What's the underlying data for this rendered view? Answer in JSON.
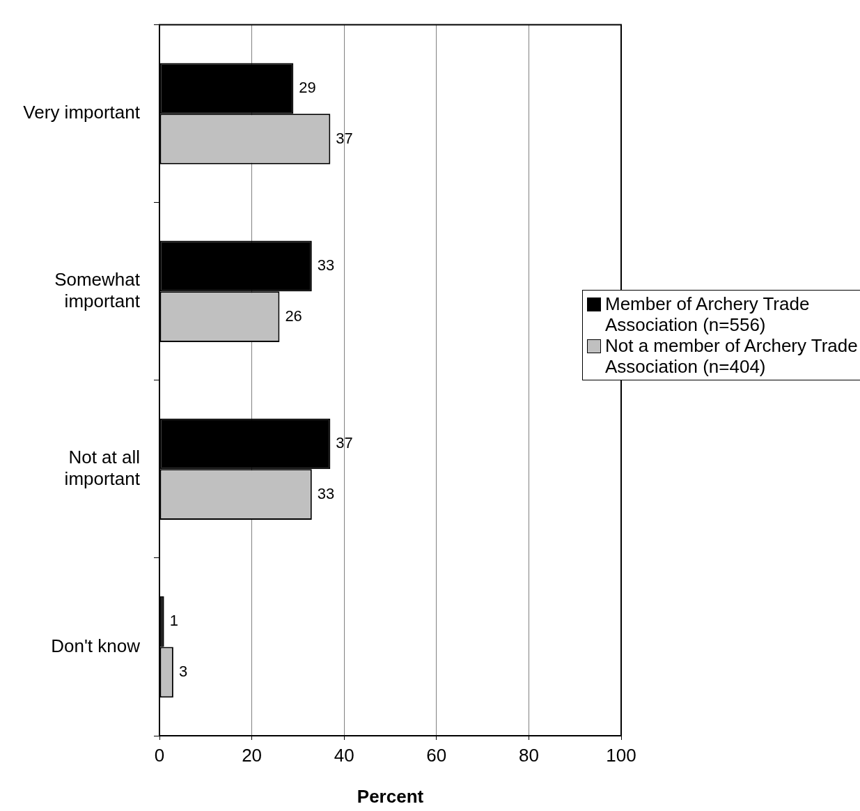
{
  "chart_data": {
    "type": "bar",
    "orientation": "horizontal",
    "xlabel": "Percent",
    "categories": [
      "Very important",
      "Somewhat important",
      "Not at all important",
      "Don't know"
    ],
    "series": [
      {
        "name": "Member of Archery Trade Association (n=556)",
        "color": "#000000",
        "values": [
          29,
          33,
          37,
          1
        ]
      },
      {
        "name": "Not a member of Archery Trade Association (n=404)",
        "color": "#c0c0c0",
        "values": [
          37,
          26,
          33,
          3
        ]
      }
    ],
    "xlim": [
      0,
      100
    ],
    "xticks": [
      0,
      20,
      40,
      60,
      80,
      100
    ],
    "grid": "x",
    "legend": "right",
    "data_labels": true
  }
}
